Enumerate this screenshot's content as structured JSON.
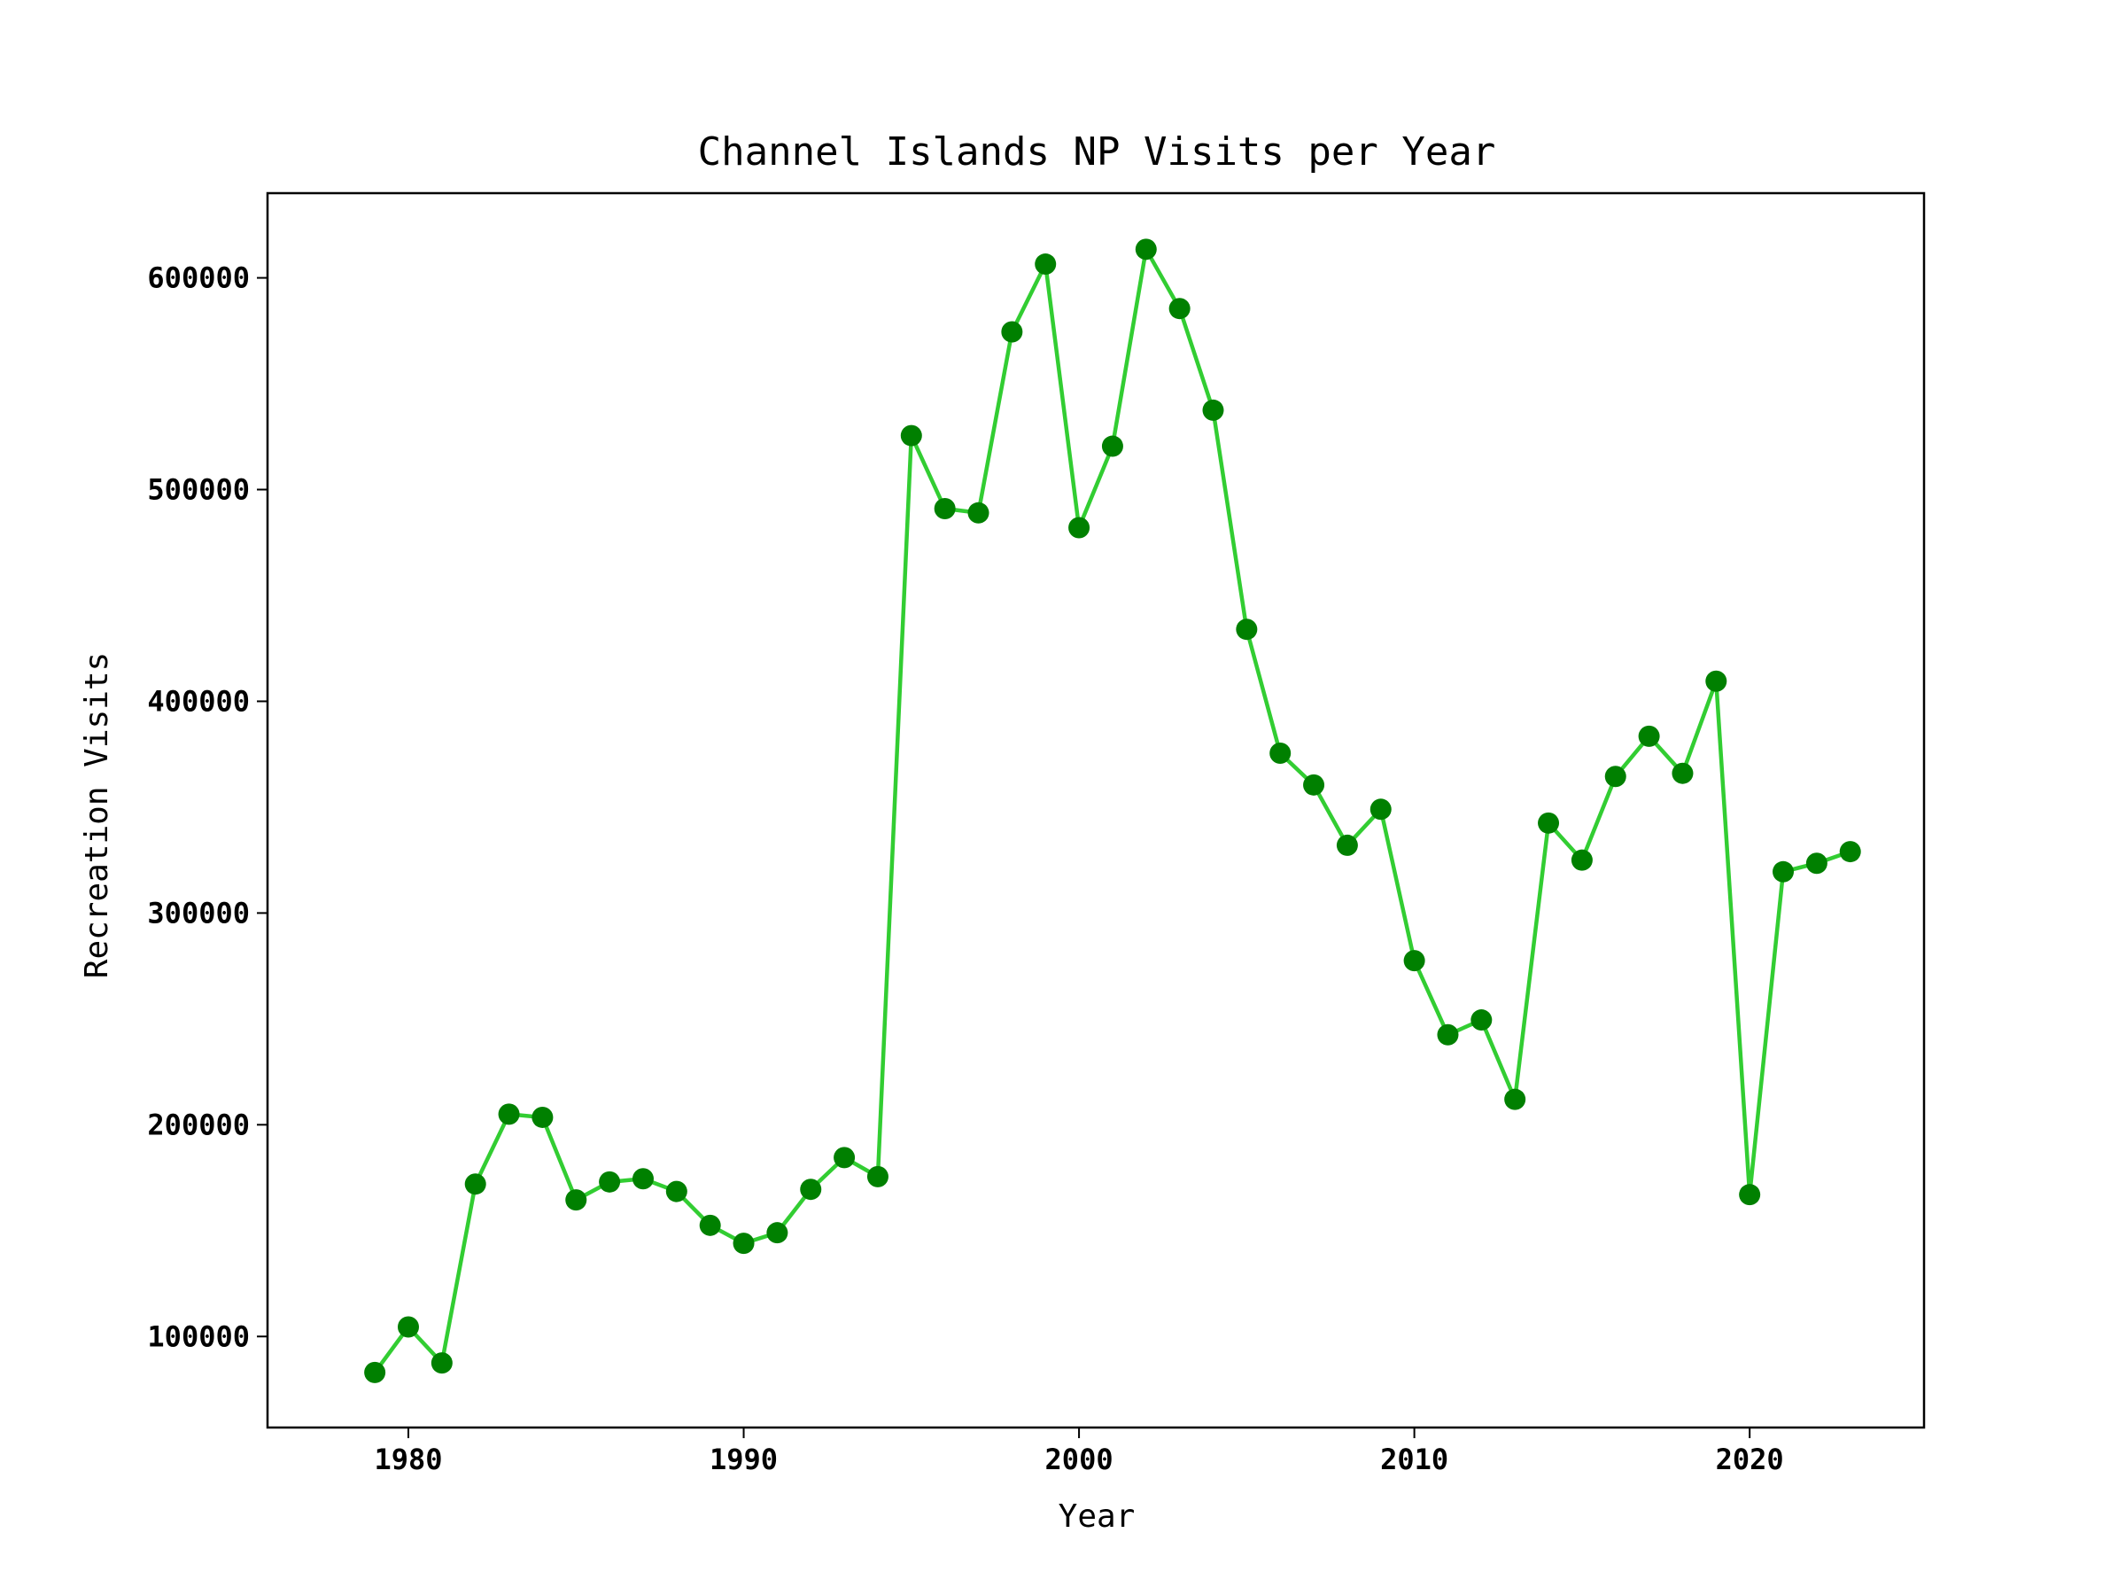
{
  "chart_data": {
    "type": "line",
    "title": "Channel Islands NP Visits per Year",
    "xlabel": "Year",
    "ylabel": "Recreation Visits",
    "xlim": [
      1975.8,
      2025.2
    ],
    "ylim": [
      57000,
      640000
    ],
    "x_ticks": [
      1980,
      1990,
      2000,
      2010,
      2020
    ],
    "y_ticks": [
      100000,
      200000,
      300000,
      400000,
      500000,
      600000
    ],
    "grid": false,
    "legend": "none",
    "line_color": "#32CD32",
    "marker_color": "#008000",
    "x": [
      1979,
      1980,
      1981,
      1982,
      1983,
      1984,
      1985,
      1986,
      1987,
      1988,
      1989,
      1990,
      1991,
      1992,
      1993,
      1994,
      1995,
      1996,
      1997,
      1998,
      1999,
      2000,
      2001,
      2002,
      2003,
      2004,
      2005,
      2006,
      2007,
      2008,
      2009,
      2010,
      2011,
      2012,
      2013,
      2014,
      2015,
      2016,
      2017,
      2018,
      2019,
      2020,
      2021,
      2022,
      2023
    ],
    "values": [
      83000,
      104500,
      87500,
      172000,
      205000,
      203500,
      164500,
      173000,
      174500,
      168500,
      152500,
      144000,
      149000,
      169500,
      184500,
      175500,
      525500,
      491000,
      489000,
      574500,
      606500,
      482000,
      520500,
      613500,
      585500,
      537500,
      434000,
      375500,
      360500,
      332000,
      349000,
      277500,
      242500,
      249500,
      212000,
      342500,
      325000,
      364500,
      383500,
      366000,
      409500,
      167000,
      319500,
      323500,
      329000
    ]
  }
}
